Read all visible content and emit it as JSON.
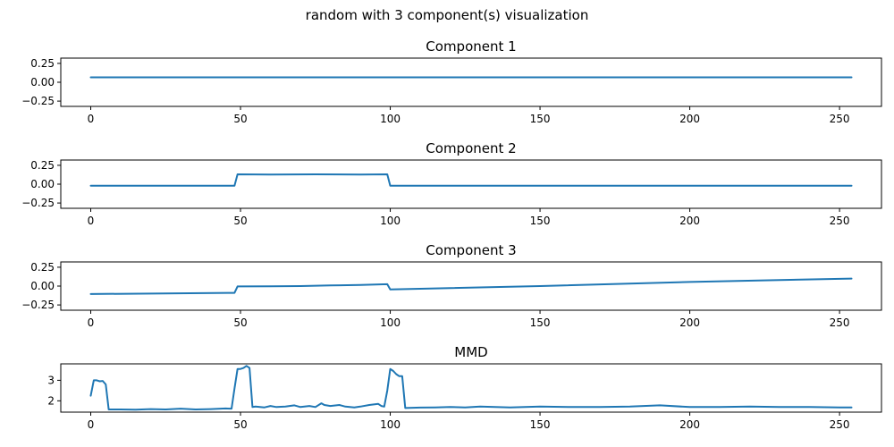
{
  "figure": {
    "suptitle": "random with 3 component(s) visualization"
  },
  "colors": {
    "line": "#1f77b4"
  },
  "chart_data": [
    {
      "type": "line",
      "title": "Component 1",
      "xlim": [
        -10,
        264
      ],
      "ylim": [
        -0.32,
        0.32
      ],
      "xticks": [
        0,
        50,
        100,
        150,
        200,
        250
      ],
      "yticks": [
        -0.25,
        0,
        0.25
      ],
      "ytick_labels": [
        "−0.25",
        "0.00",
        "0.25"
      ],
      "grid": false,
      "series": [
        {
          "x": [
            0,
            254
          ],
          "y": [
            0.065,
            0.065
          ]
        }
      ]
    },
    {
      "type": "line",
      "title": "Component 2",
      "xlim": [
        -10,
        264
      ],
      "ylim": [
        -0.32,
        0.32
      ],
      "xticks": [
        0,
        50,
        100,
        150,
        200,
        250
      ],
      "yticks": [
        -0.25,
        0,
        0.25
      ],
      "ytick_labels": [
        "−0.25",
        "0.00",
        "0.25"
      ],
      "grid": false,
      "series": [
        {
          "x": [
            0,
            48,
            49,
            60,
            75,
            90,
            99,
            100,
            254
          ],
          "y": [
            -0.02,
            -0.02,
            0.13,
            0.128,
            0.13,
            0.128,
            0.13,
            -0.02,
            -0.02
          ]
        }
      ]
    },
    {
      "type": "line",
      "title": "Component 3",
      "xlim": [
        -10,
        264
      ],
      "ylim": [
        -0.32,
        0.32
      ],
      "xticks": [
        0,
        50,
        100,
        150,
        200,
        250
      ],
      "yticks": [
        -0.25,
        0,
        0.25
      ],
      "ytick_labels": [
        "−0.25",
        "0.00",
        "0.25"
      ],
      "grid": false,
      "series": [
        {
          "x": [
            0,
            48,
            49,
            60,
            70,
            80,
            90,
            99,
            100,
            150,
            200,
            254
          ],
          "y": [
            -0.105,
            -0.09,
            -0.005,
            -0.003,
            0.0,
            0.008,
            0.015,
            0.025,
            -0.045,
            0.0,
            0.055,
            0.1
          ]
        }
      ]
    },
    {
      "type": "line",
      "title": "MMD",
      "xlim": [
        -10,
        264
      ],
      "ylim": [
        1.45,
        3.8
      ],
      "xticks": [
        0,
        50,
        100,
        150,
        200,
        250
      ],
      "yticks": [
        2,
        3
      ],
      "ytick_labels": [
        "2",
        "3"
      ],
      "grid": false,
      "series": [
        {
          "x": [
            0,
            1,
            2,
            3,
            4,
            5,
            6,
            10,
            15,
            20,
            25,
            30,
            35,
            40,
            45,
            47,
            48,
            49,
            50,
            51,
            52,
            53,
            54,
            55,
            58,
            60,
            62,
            65,
            68,
            70,
            73,
            75,
            77,
            78,
            80,
            83,
            85,
            88,
            90,
            93,
            96,
            97,
            98,
            99,
            100,
            101,
            102,
            103,
            104,
            105,
            110,
            115,
            120,
            125,
            130,
            135,
            140,
            145,
            150,
            160,
            170,
            180,
            190,
            200,
            210,
            220,
            230,
            240,
            250,
            254
          ],
          "y": [
            2.25,
            3.0,
            3.0,
            2.95,
            2.97,
            2.8,
            1.58,
            1.58,
            1.57,
            1.6,
            1.58,
            1.62,
            1.58,
            1.6,
            1.63,
            1.62,
            2.6,
            3.55,
            3.55,
            3.6,
            3.7,
            3.6,
            1.7,
            1.72,
            1.68,
            1.75,
            1.7,
            1.72,
            1.78,
            1.7,
            1.75,
            1.7,
            1.88,
            1.8,
            1.75,
            1.8,
            1.72,
            1.68,
            1.72,
            1.8,
            1.85,
            1.75,
            1.72,
            2.5,
            3.55,
            3.45,
            3.3,
            3.2,
            3.2,
            1.65,
            1.67,
            1.68,
            1.7,
            1.68,
            1.72,
            1.7,
            1.68,
            1.7,
            1.72,
            1.7,
            1.7,
            1.72,
            1.78,
            1.7,
            1.7,
            1.72,
            1.7,
            1.7,
            1.68,
            1.68
          ]
        }
      ]
    }
  ]
}
